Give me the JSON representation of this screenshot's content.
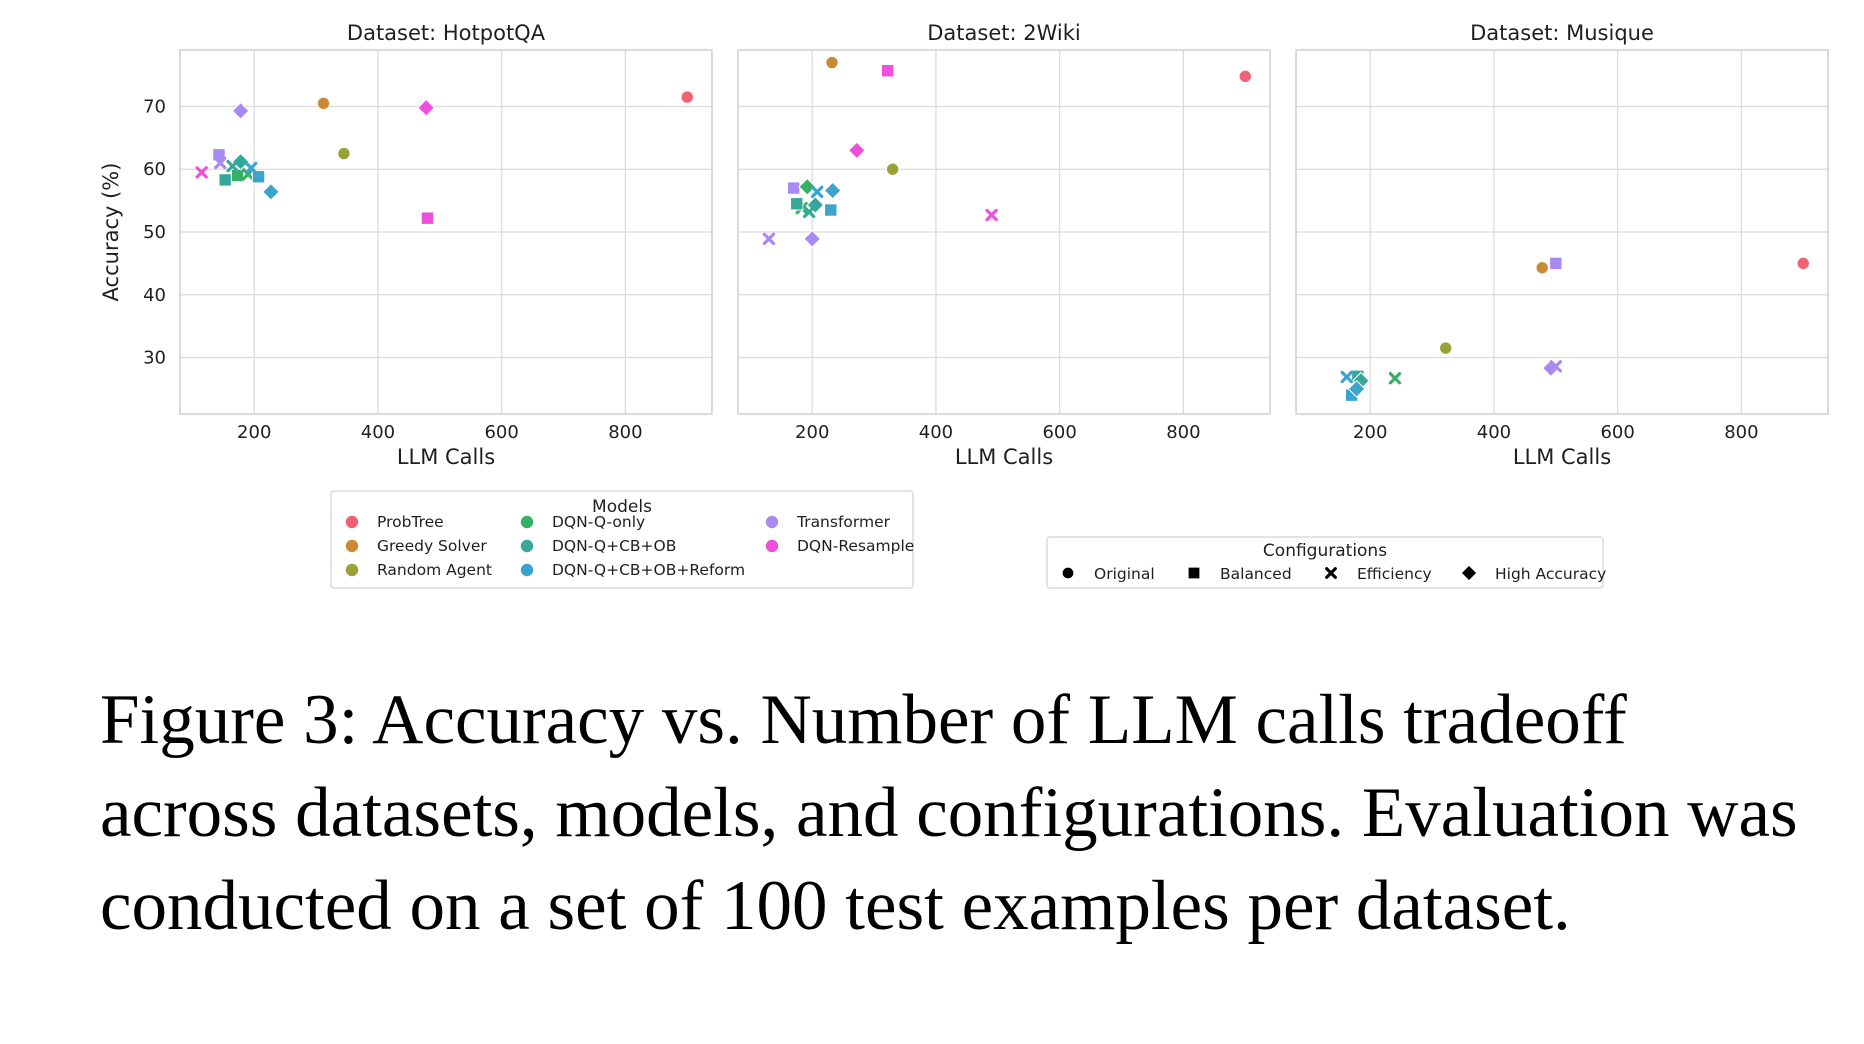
{
  "caption": "Figure 3: Accuracy vs. Number of LLM calls tradeoff across datasets, models, and configurations. Evaluation was conducted on a set of 100 test examples per dataset.",
  "chart_data": {
    "type": "scatter",
    "ylabel": "Accuracy (%)",
    "xlabel": "LLM Calls",
    "xlim": [
      80,
      940
    ],
    "ylim": [
      21,
      79
    ],
    "xticks": [
      200,
      400,
      600,
      800
    ],
    "yticks": [
      30,
      40,
      50,
      60,
      70
    ],
    "grid": true,
    "models_legend": {
      "title": "Models",
      "items": [
        {
          "name": "ProbTree",
          "color": "#ef6173"
        },
        {
          "name": "Greedy Solver",
          "color": "#c98a35"
        },
        {
          "name": "Random Agent",
          "color": "#98a236"
        },
        {
          "name": "DQN-Q-only",
          "color": "#35b065"
        },
        {
          "name": "DQN-Q+CB+OB",
          "color": "#36a89a"
        },
        {
          "name": "DQN-Q+CB+OB+Reform",
          "color": "#3aa4cc"
        },
        {
          "name": "Transformer",
          "color": "#a88bf0"
        },
        {
          "name": "DQN-Resample",
          "color": "#ee4fdc"
        }
      ]
    },
    "configs_legend": {
      "title": "Configurations",
      "items": [
        {
          "name": "Original",
          "marker": "circle"
        },
        {
          "name": "Balanced",
          "marker": "square"
        },
        {
          "name": "Efficiency",
          "marker": "x"
        },
        {
          "name": "High Accuracy",
          "marker": "diamond"
        }
      ]
    },
    "panels": [
      {
        "title": "Dataset: HotpotQA",
        "points": [
          {
            "model": "ProbTree",
            "config": "Original",
            "x": 900,
            "y": 71.5
          },
          {
            "model": "Greedy Solver",
            "config": "Original",
            "x": 312,
            "y": 70.5
          },
          {
            "model": "Random Agent",
            "config": "Original",
            "x": 345,
            "y": 62.5
          },
          {
            "model": "Transformer",
            "config": "High Accuracy",
            "x": 178,
            "y": 69.3
          },
          {
            "model": "Transformer",
            "config": "Balanced",
            "x": 143,
            "y": 62.3
          },
          {
            "model": "Transformer",
            "config": "Efficiency",
            "x": 145,
            "y": 61.0
          },
          {
            "model": "DQN-Resample",
            "config": "High Accuracy",
            "x": 478,
            "y": 69.8
          },
          {
            "model": "DQN-Resample",
            "config": "Balanced",
            "x": 480,
            "y": 52.2
          },
          {
            "model": "DQN-Resample",
            "config": "Efficiency",
            "x": 115,
            "y": 59.5
          },
          {
            "model": "DQN-Q-only",
            "config": "Balanced",
            "x": 173,
            "y": 59.0
          },
          {
            "model": "DQN-Q-only",
            "config": "Efficiency",
            "x": 190,
            "y": 59.2
          },
          {
            "model": "DQN-Q+CB+OB",
            "config": "Balanced",
            "x": 153,
            "y": 58.3
          },
          {
            "model": "DQN-Q+CB+OB",
            "config": "High Accuracy",
            "x": 178,
            "y": 61.2
          },
          {
            "model": "DQN-Q+CB+OB",
            "config": "Efficiency",
            "x": 165,
            "y": 60.5
          },
          {
            "model": "DQN-Q+CB+OB+Reform",
            "config": "Balanced",
            "x": 207,
            "y": 58.8
          },
          {
            "model": "DQN-Q+CB+OB+Reform",
            "config": "High Accuracy",
            "x": 227,
            "y": 56.4
          },
          {
            "model": "DQN-Q+CB+OB+Reform",
            "config": "Efficiency",
            "x": 195,
            "y": 60.2
          }
        ]
      },
      {
        "title": "Dataset: 2Wiki",
        "points": [
          {
            "model": "ProbTree",
            "config": "Original",
            "x": 900,
            "y": 74.8
          },
          {
            "model": "Greedy Solver",
            "config": "Original",
            "x": 232,
            "y": 77.0
          },
          {
            "model": "Random Agent",
            "config": "Original",
            "x": 330,
            "y": 60.0
          },
          {
            "model": "Transformer",
            "config": "Balanced",
            "x": 170,
            "y": 57.0
          },
          {
            "model": "Transformer",
            "config": "Efficiency",
            "x": 130,
            "y": 48.9
          },
          {
            "model": "Transformer",
            "config": "High Accuracy",
            "x": 200,
            "y": 48.9
          },
          {
            "model": "DQN-Resample",
            "config": "Balanced",
            "x": 322,
            "y": 75.7
          },
          {
            "model": "DQN-Resample",
            "config": "High Accuracy",
            "x": 272,
            "y": 63.0
          },
          {
            "model": "DQN-Resample",
            "config": "Efficiency",
            "x": 490,
            "y": 52.7
          },
          {
            "model": "DQN-Q-only",
            "config": "High Accuracy",
            "x": 192,
            "y": 57.2
          },
          {
            "model": "DQN-Q-only",
            "config": "Efficiency",
            "x": 183,
            "y": 53.8
          },
          {
            "model": "DQN-Q+CB+OB",
            "config": "Balanced",
            "x": 175,
            "y": 54.5
          },
          {
            "model": "DQN-Q+CB+OB",
            "config": "High Accuracy",
            "x": 205,
            "y": 54.3
          },
          {
            "model": "DQN-Q+CB+OB",
            "config": "Efficiency",
            "x": 195,
            "y": 53.2
          },
          {
            "model": "DQN-Q+CB+OB+Reform",
            "config": "High Accuracy",
            "x": 233,
            "y": 56.6
          },
          {
            "model": "DQN-Q+CB+OB+Reform",
            "config": "Balanced",
            "x": 230,
            "y": 53.5
          },
          {
            "model": "DQN-Q+CB+OB+Reform",
            "config": "Efficiency",
            "x": 208,
            "y": 56.4
          }
        ]
      },
      {
        "title": "Dataset: Musique",
        "points": [
          {
            "model": "ProbTree",
            "config": "Original",
            "x": 900,
            "y": 45.0
          },
          {
            "model": "Greedy Solver",
            "config": "Original",
            "x": 478,
            "y": 44.3
          },
          {
            "model": "Random Agent",
            "config": "Original",
            "x": 322,
            "y": 31.5
          },
          {
            "model": "Transformer",
            "config": "Balanced",
            "x": 500,
            "y": 45.0
          },
          {
            "model": "Transformer",
            "config": "High Accuracy",
            "x": 492,
            "y": 28.3
          },
          {
            "model": "Transformer",
            "config": "Efficiency",
            "x": 500,
            "y": 28.6
          },
          {
            "model": "DQN-Q-only",
            "config": "Efficiency",
            "x": 240,
            "y": 26.7
          },
          {
            "model": "DQN-Q+CB+OB",
            "config": "Balanced",
            "x": 180,
            "y": 27.0
          },
          {
            "model": "DQN-Q+CB+OB",
            "config": "High Accuracy",
            "x": 185,
            "y": 26.3
          },
          {
            "model": "DQN-Q+CB+OB+Reform",
            "config": "Efficiency",
            "x": 162,
            "y": 26.9
          },
          {
            "model": "DQN-Q+CB+OB+Reform",
            "config": "Balanced",
            "x": 170,
            "y": 24.0
          },
          {
            "model": "DQN-Q+CB+OB+Reform",
            "config": "High Accuracy",
            "x": 178,
            "y": 25.0
          }
        ]
      }
    ]
  }
}
